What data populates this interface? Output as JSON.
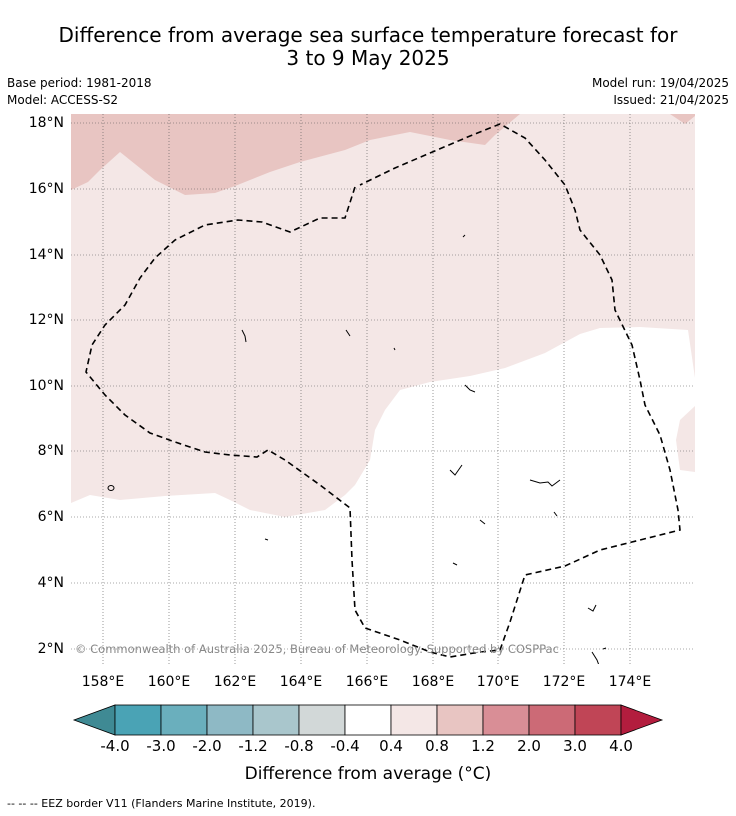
{
  "title_line1": "Difference from average sea surface temperature forecast for",
  "title_line2": "3 to 9 May 2025",
  "base_period": "Base period: 1981-2018",
  "model": "Model: ACCESS-S2",
  "model_run": "Model run: 19/04/2025",
  "issued": "Issued: 21/04/2025",
  "latitude_labels": [
    "18°N",
    "16°N",
    "14°N",
    "12°N",
    "10°N",
    "8°N",
    "6°N",
    "4°N",
    "2°N"
  ],
  "longitude_labels": [
    "158°E",
    "160°E",
    "162°E",
    "164°E",
    "166°E",
    "168°E",
    "170°E",
    "172°E",
    "174°E"
  ],
  "colorbar": {
    "labels": [
      "-4.0",
      "-3.0",
      "-2.0",
      "-1.2",
      "-0.8",
      "-0.4",
      "0.4",
      "0.8",
      "1.2",
      "2.0",
      "3.0",
      "4.0"
    ],
    "colors": [
      "#3f8a94",
      "#4aa3b5",
      "#6aafbd",
      "#8eb9c5",
      "#a9c6cc",
      "#d2d8d8",
      "#ffffff",
      "#f4e7e6",
      "#e8c5c2",
      "#d98e96",
      "#cc6a76",
      "#c04556",
      "#b31d3e"
    ],
    "title": "Difference from average ($^\\circ$C)",
    "title_display": "Difference from average (°C)"
  },
  "credit": "© Commonwealth of Australia 2025, Bureau of Meteorology. Supported by COSPPac",
  "legend": "--  --  -- EEZ border V11 (Flanders Marine Institute, 2019).",
  "map": {
    "lon_range": [
      157,
      176
    ],
    "lat_range": [
      1.5,
      18.2
    ],
    "region_colors": {
      "warm_0_4_0_8": "#f4e7e6",
      "warm_0_8_1_2": "#e8c5c2",
      "neutral": "#ffffff"
    }
  }
}
